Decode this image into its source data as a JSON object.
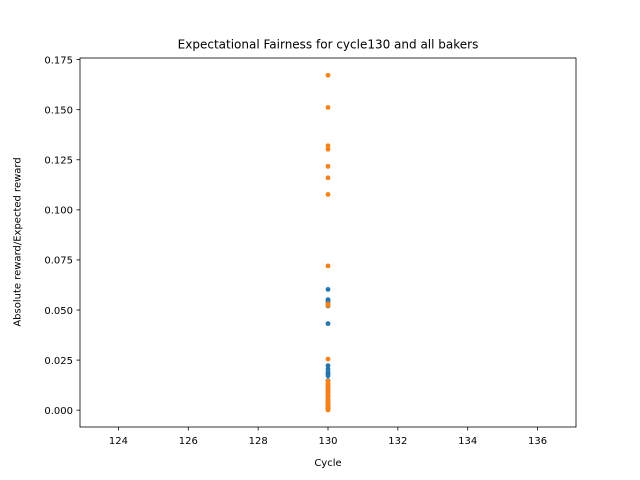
{
  "chart_data": {
    "type": "scatter",
    "title": "Expectational Fairness for cycle130 and all bakers",
    "xlabel": "Cycle",
    "ylabel": "Absolute reward/Expected reward",
    "xlim": [
      122.9,
      137.1
    ],
    "ylim": [
      -0.0084,
      0.1758
    ],
    "xticks": [
      124,
      126,
      128,
      130,
      132,
      134,
      136
    ],
    "yticks": [
      0.0,
      0.025,
      0.05,
      0.075,
      0.1,
      0.125,
      0.15,
      0.175
    ],
    "ytick_labels": [
      "0.000",
      "0.025",
      "0.050",
      "0.075",
      "0.100",
      "0.125",
      "0.150",
      "0.175"
    ],
    "grid": false,
    "series": [
      {
        "color": "#1f77b4",
        "points": [
          [
            130,
            0.0603
          ],
          [
            130,
            0.0552
          ],
          [
            130,
            0.0543
          ],
          [
            130,
            0.0535
          ],
          [
            130,
            0.052
          ],
          [
            130,
            0.0432
          ],
          [
            130,
            0.0222
          ],
          [
            130,
            0.0205
          ],
          [
            130,
            0.019
          ],
          [
            130,
            0.018
          ],
          [
            130,
            0.0172
          ],
          [
            130,
            0.0148
          ],
          [
            130,
            0.0125
          ],
          [
            130,
            0.011
          ],
          [
            130,
            0.0095
          ],
          [
            130,
            0.0085
          ],
          [
            130,
            0.007
          ],
          [
            130,
            0.0055
          ],
          [
            130,
            0.004
          ],
          [
            130,
            0.003
          ],
          [
            130,
            0.002
          ],
          [
            130,
            0.001
          ]
        ]
      },
      {
        "color": "#ff7f0e",
        "points": [
          [
            130,
            0.1672
          ],
          [
            130,
            0.1511
          ],
          [
            130,
            0.132
          ],
          [
            130,
            0.1302
          ],
          [
            130,
            0.1217
          ],
          [
            130,
            0.116
          ],
          [
            130,
            0.1077
          ],
          [
            130,
            0.072
          ],
          [
            130,
            0.053
          ],
          [
            130,
            0.0522
          ],
          [
            130,
            0.0255
          ],
          [
            130,
            0.0145
          ],
          [
            130,
            0.0135
          ],
          [
            130,
            0.0125
          ],
          [
            130,
            0.0115
          ],
          [
            130,
            0.0105
          ],
          [
            130,
            0.0095
          ],
          [
            130,
            0.0085
          ],
          [
            130,
            0.0072
          ],
          [
            130,
            0.0062
          ],
          [
            130,
            0.0052
          ],
          [
            130,
            0.0042
          ],
          [
            130,
            0.0032
          ],
          [
            130,
            0.0024
          ],
          [
            130,
            0.0016
          ],
          [
            130,
            0.001
          ],
          [
            130,
            0.0005
          ],
          [
            130,
            0.0001
          ]
        ]
      }
    ]
  }
}
